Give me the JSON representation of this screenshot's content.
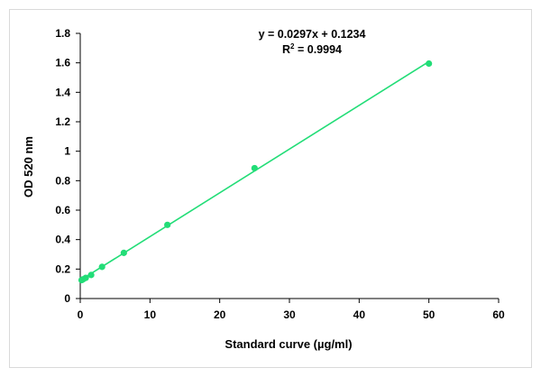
{
  "chart_data": {
    "type": "scatter",
    "xlabel": "Standard curve (µg/ml)",
    "ylabel": "OD 520 nm",
    "xlim": [
      0,
      60
    ],
    "ylim": [
      0,
      1.8
    ],
    "xticks": [
      "0",
      "10",
      "20",
      "30",
      "40",
      "50",
      "60"
    ],
    "yticks": [
      "0",
      "0.2",
      "0.4",
      "0.6",
      "0.8",
      "1",
      "1.2",
      "1.4",
      "1.6",
      "1.8"
    ],
    "grid": false,
    "series": [
      {
        "x": [
          0.195,
          0.39,
          0.781,
          1.5625,
          3.125,
          6.25,
          12.5,
          25,
          50
        ],
        "y": [
          0.125,
          0.13,
          0.14,
          0.16,
          0.215,
          0.31,
          0.5,
          0.885,
          1.595
        ]
      }
    ],
    "trendline": {
      "slope": 0.0297,
      "intercept": 0.1234,
      "x_range": [
        0,
        50
      ]
    },
    "annotations": {
      "equation": "y = 0.0297x + 0.1234",
      "r2_prefix": "R",
      "r2_sup": "2",
      "r2_suffix": " = 0.9994"
    },
    "colors": {
      "marker": "#22dd77",
      "trendline": "#22dd77",
      "axis": "#000000",
      "frame": "#d9d9d9"
    }
  }
}
